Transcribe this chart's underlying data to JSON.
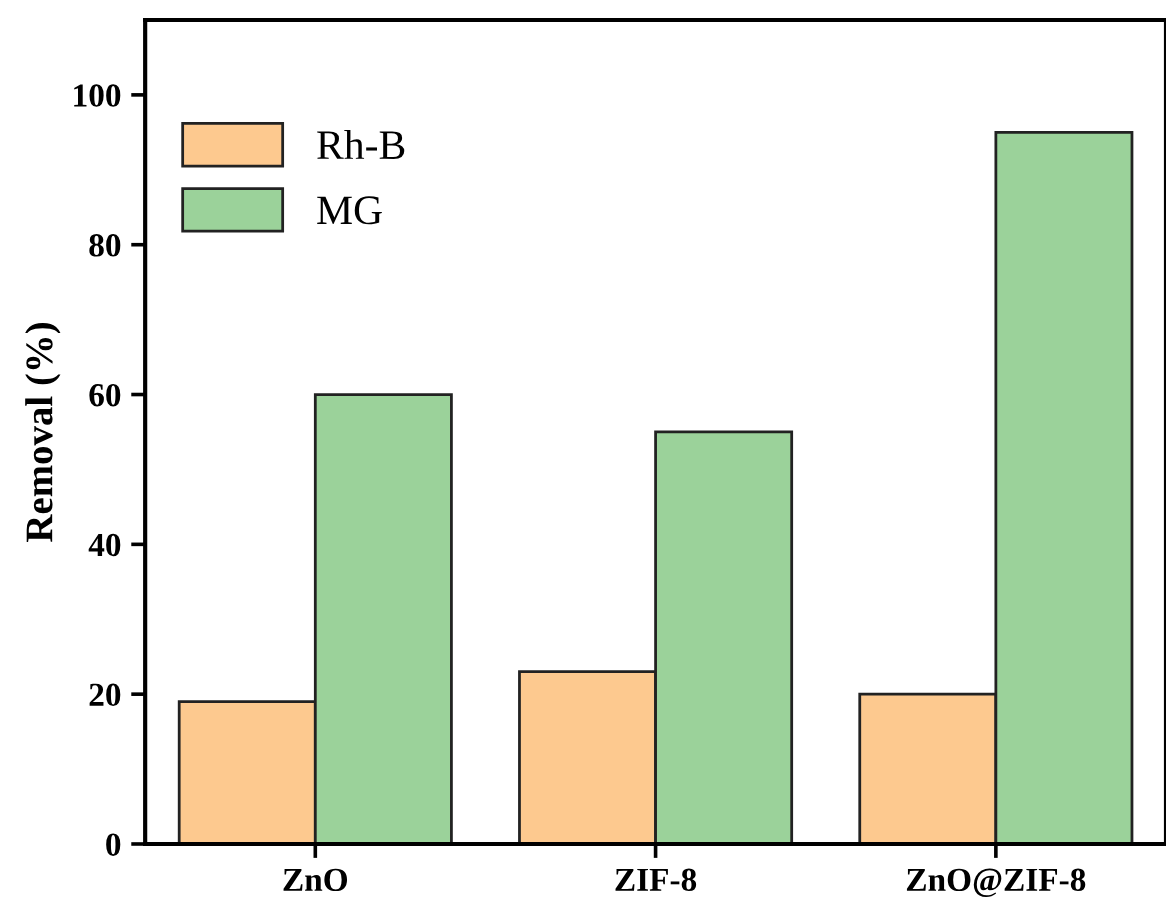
{
  "chart_data": {
    "type": "bar",
    "ylabel": "Removal (%)",
    "categories": [
      "ZnO",
      "ZIF-8",
      "ZnO@ZIF-8"
    ],
    "series": [
      {
        "name": "Rh-B",
        "color": "#fdc98f",
        "values": [
          19,
          23,
          20
        ]
      },
      {
        "name": "MG",
        "color": "#9bd29a",
        "values": [
          60,
          55,
          95
        ]
      }
    ],
    "ylim": [
      0,
      110
    ],
    "yticks": [
      0,
      20,
      40,
      60,
      80,
      100
    ],
    "grid": false,
    "legend": "top left"
  }
}
